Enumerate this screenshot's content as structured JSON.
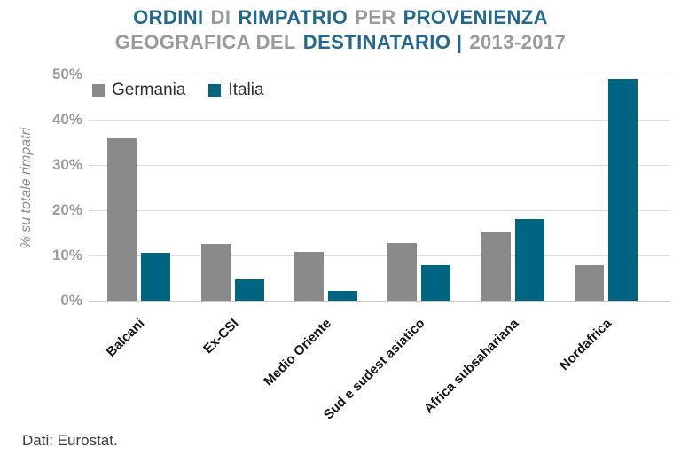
{
  "title": {
    "line1": [
      {
        "text": "ORDINI",
        "tone": "accent"
      },
      {
        "text": "DI",
        "tone": "muted"
      },
      {
        "text": "RIMPATRIO",
        "tone": "accent"
      },
      {
        "text": "PER",
        "tone": "muted"
      },
      {
        "text": "PROVENIENZA",
        "tone": "accent"
      }
    ],
    "line2": [
      {
        "text": "GEOGRAFICA DEL",
        "tone": "muted"
      },
      {
        "text": "DESTINATARIO |",
        "tone": "accent"
      },
      {
        "text": "2013-2017",
        "tone": "muted"
      }
    ]
  },
  "chart_data": {
    "type": "bar",
    "categories": [
      "Balcani",
      "Ex-CSI",
      "Medio Oriente",
      "Sud e sudest asiatico",
      "Africa subsahariana",
      "Nordafrica"
    ],
    "series": [
      {
        "name": "Germania",
        "color": "#8a8a8a",
        "values": [
          35.8,
          12.5,
          10.7,
          12.8,
          15.3,
          7.8
        ]
      },
      {
        "name": "Italia",
        "color": "#006580",
        "values": [
          10.5,
          4.8,
          2.2,
          7.9,
          18.1,
          49.1
        ]
      }
    ],
    "title": "ORDINI DI RIMPATRIO PER PROVENIENZA GEOGRAFICA DEL DESTINATARIO | 2013-2017",
    "xlabel": "",
    "ylabel": "% su totale rimpatri",
    "ylim": [
      0,
      50
    ],
    "ytick_labels": [
      "0%",
      "10%",
      "20%",
      "30%",
      "40%",
      "50%"
    ],
    "grid": true,
    "legend_position": "top-left"
  },
  "footer": {
    "source": "Dati: Eurostat."
  },
  "colors": {
    "accent": "#23688e",
    "muted": "#9a9a9a",
    "germania": "#8a8a8a",
    "italia": "#006580",
    "gridline": "#dcdcdc",
    "ytick_text": "#9b9b9b",
    "xlabel_text": "#141414"
  }
}
